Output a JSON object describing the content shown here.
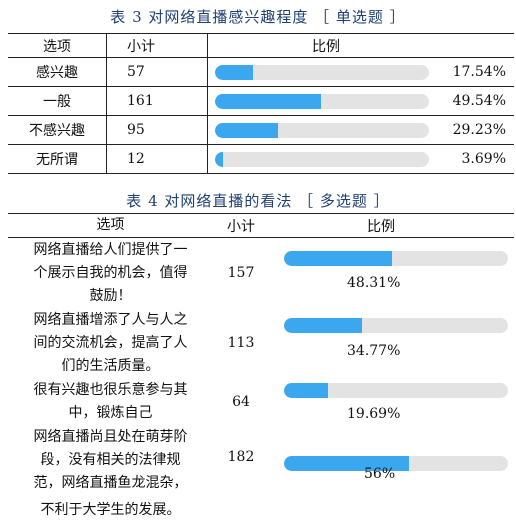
{
  "table3": {
    "caption": "表 3  对网络直播感兴趣程度 ［ 单选题 ］",
    "headers": {
      "option": "选项",
      "count": "小计",
      "ratio": "比例"
    },
    "rows": [
      {
        "option": "感兴趣",
        "count": "57",
        "pct_label": "17.54%",
        "fraction": 0.1754
      },
      {
        "option": "一般",
        "count": "161",
        "pct_label": "49.54%",
        "fraction": 0.4954
      },
      {
        "option": "不感兴趣",
        "count": "95",
        "pct_label": "29.23%",
        "fraction": 0.2923
      },
      {
        "option": "无所谓",
        "count": "12",
        "pct_label": "3.69%",
        "fraction": 0.0369
      }
    ]
  },
  "table4": {
    "caption": "表  4  对网络直播的看法 ［  多选题 ］",
    "headers": {
      "option": "选项",
      "count": "小计",
      "ratio": "比例"
    },
    "rows": [
      {
        "option_lines": [
          "网络直播给人们提供了一",
          "个展示自我的机会，值得",
          "鼓励！"
        ],
        "count": "157",
        "pct_label": "48.31%",
        "fraction": 0.4831
      },
      {
        "option_lines": [
          "网络直播增添了人与人之",
          "间的交流机会，提高了人",
          "们的生活质量。"
        ],
        "count": "113",
        "pct_label": "34.77%",
        "fraction": 0.3477
      },
      {
        "option_lines": [
          "很有兴趣也很乐意参与其",
          "中，锻炼自己"
        ],
        "count": "64",
        "pct_label": "19.69%",
        "fraction": 0.1969
      },
      {
        "option_lines": [
          "网络直播尚且处在萌芽阶",
          "段，没有相关的法律规",
          "范，网络直播鱼龙混杂，",
          "不利于大学生的发展。"
        ],
        "count": "182",
        "pct_label": "56%",
        "fraction": 0.56
      }
    ]
  },
  "colors": {
    "caption": "#1f3f73",
    "bar_fill": "#3ba7ef",
    "bar_track": "#e3e3e3"
  }
}
